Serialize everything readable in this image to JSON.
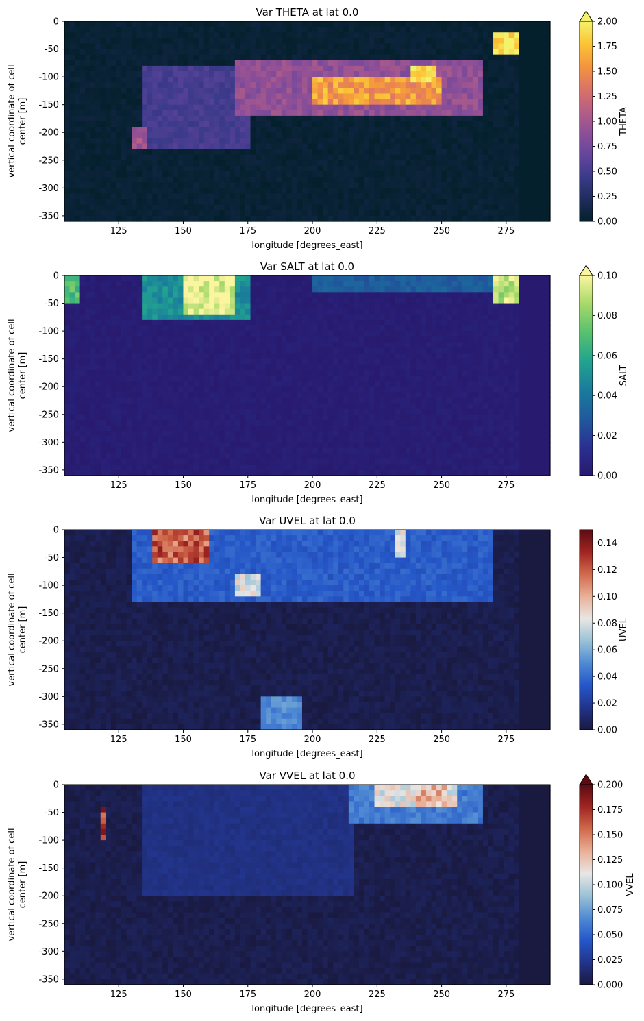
{
  "chart_data": [
    {
      "type": "heatmap",
      "title": "Var THETA at lat 0.0",
      "xlabel": "longitude [degrees_east]",
      "ylabel": [
        "vertical coordinate of cell",
        "center [m]"
      ],
      "xlim": [
        104,
        292
      ],
      "ylim": [
        -360,
        0
      ],
      "xticks": [
        125,
        150,
        175,
        200,
        225,
        250,
        275
      ],
      "yticks": [
        0,
        -50,
        -100,
        -150,
        -200,
        -250,
        -300,
        -350
      ],
      "colorbar": {
        "label": "THETA",
        "range": [
          0,
          2.0
        ],
        "extend_max": true,
        "ticks": [
          "0.00",
          "0.25",
          "0.50",
          "0.75",
          "1.00",
          "1.25",
          "1.50",
          "1.75",
          "2.00"
        ],
        "colormap": [
          "#04202c",
          "#1f2d5c",
          "#3b3a8a",
          "#65469d",
          "#8e4f97",
          "#b75f84",
          "#dc7466",
          "#f4963e",
          "#fbc536",
          "#f3f26a"
        ]
      },
      "features": [
        {
          "x0": 170,
          "x1": 265,
          "y0": -170,
          "y1": -75,
          "value": 0.9
        },
        {
          "x0": 200,
          "x1": 250,
          "y0": -145,
          "y1": -100,
          "value": 1.6
        },
        {
          "x0": 238,
          "x1": 248,
          "y0": -110,
          "y1": -80,
          "value": 2.0
        },
        {
          "x0": 135,
          "x1": 175,
          "y0": -230,
          "y1": -80,
          "value": 0.5
        },
        {
          "x0": 131,
          "x1": 135,
          "y0": -225,
          "y1": -190,
          "value": 1.0
        },
        {
          "x0": 270,
          "x1": 280,
          "y0": -60,
          "y1": -25,
          "value": 2.0
        }
      ]
    },
    {
      "type": "heatmap",
      "title": "Var SALT at lat 0.0",
      "xlabel": "longitude [degrees_east]",
      "ylabel": [
        "vertical coordinate of cell",
        "center [m]"
      ],
      "xlim": [
        104,
        292
      ],
      "ylim": [
        -360,
        0
      ],
      "xticks": [
        125,
        150,
        175,
        200,
        225,
        250,
        275
      ],
      "yticks": [
        0,
        -50,
        -100,
        -150,
        -200,
        -250,
        -300,
        -350
      ],
      "colorbar": {
        "label": "SALT",
        "range": [
          0,
          0.1
        ],
        "extend_max": true,
        "ticks": [
          "0.00",
          "0.02",
          "0.04",
          "0.06",
          "0.08",
          "0.10"
        ],
        "colormap": [
          "#281a6e",
          "#2a3092",
          "#1f5a9c",
          "#1a7c9c",
          "#22a38f",
          "#57c16e",
          "#a6d86a",
          "#fbf5a0"
        ]
      },
      "features": [
        {
          "x0": 150,
          "x1": 170,
          "y0": -70,
          "y1": 0,
          "value": 0.1
        },
        {
          "x0": 135,
          "x1": 175,
          "y0": -80,
          "y1": 0,
          "value": 0.05
        },
        {
          "x0": 105,
          "x1": 110,
          "y0": -50,
          "y1": 0,
          "value": 0.07
        },
        {
          "x0": 270,
          "x1": 280,
          "y0": -50,
          "y1": 0,
          "value": 0.09
        },
        {
          "x0": 200,
          "x1": 270,
          "y0": -30,
          "y1": 0,
          "value": 0.03
        }
      ]
    },
    {
      "type": "heatmap",
      "title": "Var UVEL at lat 0.0",
      "xlabel": "longitude [degrees_east]",
      "ylabel": [
        "vertical coordinate of cell",
        "center [m]"
      ],
      "xlim": [
        104,
        292
      ],
      "ylim": [
        -360,
        0
      ],
      "xticks": [
        125,
        150,
        175,
        200,
        225,
        250,
        275
      ],
      "yticks": [
        0,
        -50,
        -100,
        -150,
        -200,
        -250,
        -300,
        -350
      ],
      "colorbar": {
        "label": "UVEL",
        "range": [
          0,
          0.15
        ],
        "extend_max": false,
        "ticks": [
          "0.00",
          "0.02",
          "0.04",
          "0.06",
          "0.08",
          "0.10",
          "0.12",
          "0.14"
        ],
        "colormap": [
          "#1a1a40",
          "#22348a",
          "#2557c8",
          "#4f8ad3",
          "#9ac2d6",
          "#e9e6e4",
          "#e9b097",
          "#d06a4c",
          "#a02522",
          "#5a0c12"
        ]
      },
      "features": [
        {
          "x0": 138,
          "x1": 160,
          "y0": -60,
          "y1": 0,
          "value": 0.12
        },
        {
          "x0": 130,
          "x1": 270,
          "y0": -130,
          "y1": 0,
          "value": 0.035
        },
        {
          "x0": 170,
          "x1": 180,
          "y0": -120,
          "y1": -85,
          "value": 0.08
        },
        {
          "x0": 180,
          "x1": 195,
          "y0": -360,
          "y1": -300,
          "value": 0.05
        },
        {
          "x0": 232,
          "x1": 236,
          "y0": -50,
          "y1": 0,
          "value": 0.08
        }
      ]
    },
    {
      "type": "heatmap",
      "title": "Var VVEL at lat 0.0",
      "xlabel": "longitude [degrees_east]",
      "ylabel": [
        "vertical coordinate of cell",
        "center [m]"
      ],
      "xlim": [
        104,
        292
      ],
      "ylim": [
        -360,
        0
      ],
      "xticks": [
        125,
        150,
        175,
        200,
        225,
        250,
        275
      ],
      "yticks": [
        0,
        -50,
        -100,
        -150,
        -200,
        -250,
        -300,
        -350
      ],
      "colorbar": {
        "label": "VVEL",
        "range": [
          0,
          0.2
        ],
        "extend_max": true,
        "ticks": [
          "0.000",
          "0.025",
          "0.050",
          "0.075",
          "0.100",
          "0.125",
          "0.150",
          "0.175",
          "0.200"
        ],
        "colormap": [
          "#1a1a40",
          "#22348a",
          "#2557c8",
          "#4f8ad3",
          "#9ac2d6",
          "#e9e6e4",
          "#e9b097",
          "#d06a4c",
          "#a02522",
          "#5a0c12"
        ]
      },
      "features": [
        {
          "x0": 215,
          "x1": 265,
          "y0": -70,
          "y1": 0,
          "value": 0.06
        },
        {
          "x0": 225,
          "x1": 255,
          "y0": -40,
          "y1": 0,
          "value": 0.11
        },
        {
          "x0": 240,
          "x1": 252,
          "y0": -35,
          "y1": 0,
          "value": 0.13
        },
        {
          "x0": 118,
          "x1": 120,
          "y0": -100,
          "y1": -40,
          "value": 0.17
        },
        {
          "x0": 135,
          "x1": 215,
          "y0": -200,
          "y1": 0,
          "value": 0.02
        }
      ]
    }
  ]
}
